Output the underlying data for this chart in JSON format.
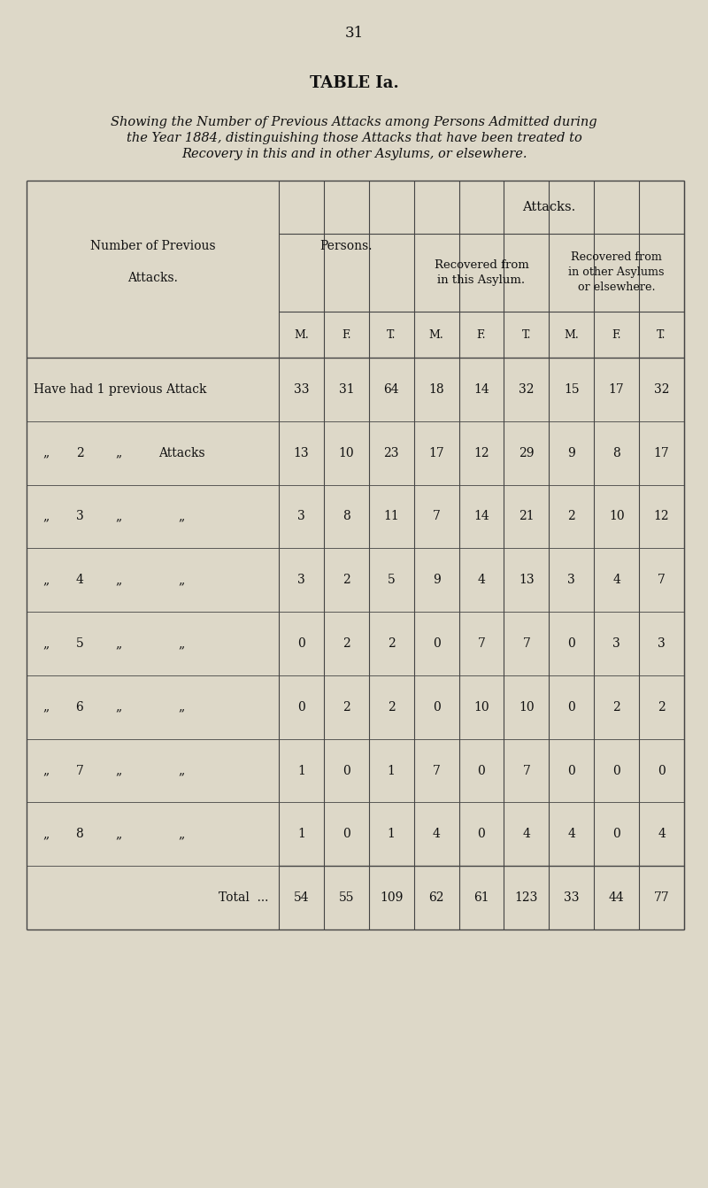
{
  "page_number": "31",
  "title": "TABLE Ia.",
  "subtitle_line1": "Showing the Number of Previous Attacks among Persons Admitted during",
  "subtitle_line2": "the Year 1884, distinguishing those Attacks that have been treated to",
  "subtitle_line3": "Recovery in this and in other Asylums, or elsewhere.",
  "bg_color": "#ddd8c8",
  "col_header_attacks": "Attacks.",
  "col_header_persons": "Persons.",
  "col_header_recovered_this": "Recovered from\nin this Asylum.",
  "col_header_recovered_other": "Recovered from\nin other Asylums\nor elsewhere.",
  "sub_headers": [
    "M.",
    "F.",
    "T.",
    "M.",
    "F.",
    "T.",
    "M.",
    "F.",
    "T."
  ],
  "row_labels": [
    [
      "Have had 1 previous Attack",
      ""
    ],
    [
      "„",
      "2",
      "„",
      "Attacks"
    ],
    [
      "„",
      "3",
      "„",
      "„"
    ],
    [
      "„",
      "4",
      "„",
      "„"
    ],
    [
      "„",
      "5",
      "„",
      "„"
    ],
    [
      "„",
      "6",
      "„",
      "„"
    ],
    [
      "„",
      "7",
      "„",
      "„"
    ],
    [
      "„",
      "8",
      "„",
      "„"
    ],
    [
      "Total",
      "..."
    ]
  ],
  "data": [
    [
      33,
      31,
      64,
      18,
      14,
      32,
      15,
      17,
      32
    ],
    [
      13,
      10,
      23,
      17,
      12,
      29,
      9,
      8,
      17
    ],
    [
      3,
      8,
      11,
      7,
      14,
      21,
      2,
      10,
      12
    ],
    [
      3,
      2,
      5,
      9,
      4,
      13,
      3,
      4,
      7
    ],
    [
      0,
      2,
      2,
      0,
      7,
      7,
      0,
      3,
      3
    ],
    [
      0,
      2,
      2,
      0,
      10,
      10,
      0,
      2,
      2
    ],
    [
      1,
      0,
      1,
      7,
      0,
      7,
      0,
      0,
      0
    ],
    [
      1,
      0,
      1,
      4,
      0,
      4,
      4,
      0,
      4
    ],
    [
      54,
      55,
      109,
      62,
      61,
      123,
      33,
      44,
      77
    ]
  ],
  "text_color": "#111111",
  "line_color": "#444444"
}
